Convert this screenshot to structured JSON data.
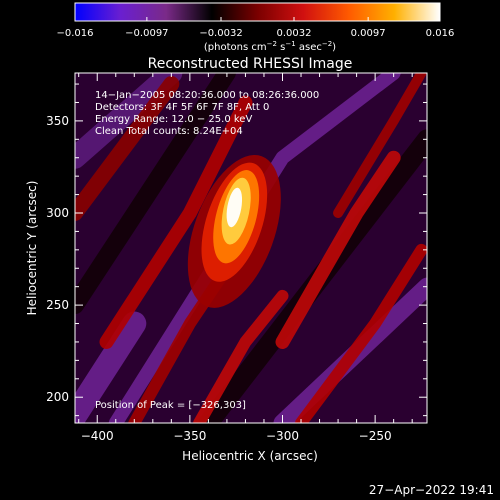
{
  "chart_data": {
    "type": "heatmap",
    "title": "Reconstructed RHESSI Image",
    "xlabel": "Heliocentric X (arcsec)",
    "ylabel": "Heliocentric Y (arcsec)",
    "xlim": [
      -412,
      -222
    ],
    "ylim": [
      186,
      376
    ],
    "x_ticks": [
      -400,
      -350,
      -300,
      -250
    ],
    "x_tick_labels": [
      "−400",
      "−350",
      "−300",
      "−250"
    ],
    "y_ticks": [
      200,
      250,
      300,
      350
    ],
    "y_tick_labels": [
      "200",
      "250",
      "300",
      "350"
    ],
    "colorbar": {
      "range": [
        -0.016,
        0.016
      ],
      "ticks": [
        -0.016,
        -0.0097,
        -0.0032,
        0.0032,
        0.0097,
        0.016
      ],
      "tick_labels": [
        "−0.016",
        "−0.0097",
        "−0.0032",
        "0.0032",
        "0.0097",
        "0.016"
      ],
      "colormap": [
        "#0000ff",
        "#6a1fd0",
        "#7a2a88",
        "#000000",
        "#7a0000",
        "#d01010",
        "#ff5a00",
        "#ffb000",
        "#ffffff"
      ]
    },
    "colorbar_units": {
      "prefix": "(photons cm",
      "exp1": "−2",
      "mid1": " s",
      "exp2": "−1",
      "mid2": " asec",
      "exp3": "−2",
      "suffix": ")"
    },
    "info_lines": [
      "14−Jan−2005 08:20:36.000 to 08:26:36.000",
      "Detectors: 3F 4F 5F 6F 7F 8F, Att 0",
      "Energy Range: 12.0 − 25.0 keV",
      "Clean     Total counts: 8.24E+04"
    ],
    "peak_label": "Position of Peak = [−326,303]",
    "peak_position": [
      -326,
      303
    ]
  },
  "footer": {
    "timestamp": "27−Apr−2022 19:41"
  }
}
